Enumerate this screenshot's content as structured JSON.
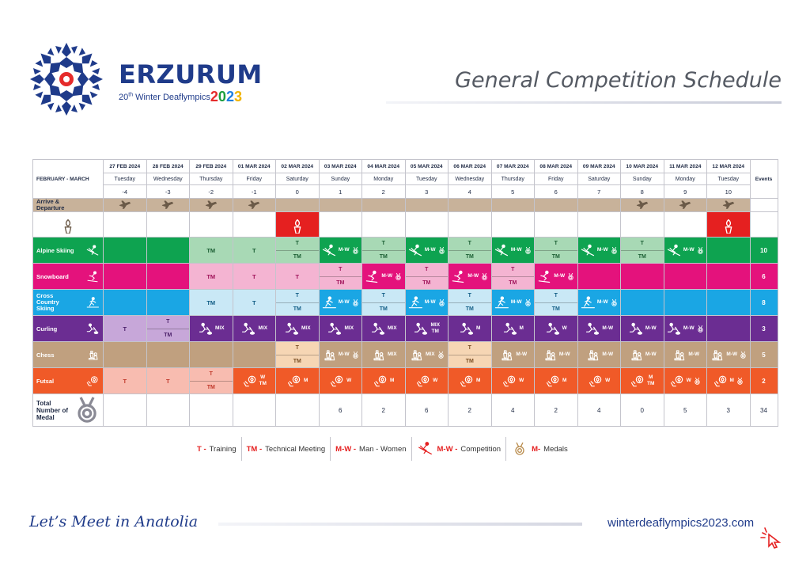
{
  "header": {
    "brand_name": "ERZURUM",
    "brand_sub_num": "20",
    "brand_sub_sup": "th",
    "brand_sub_text": "Winter Deaflympics",
    "brand_year": [
      "2",
      "0",
      "2",
      "3"
    ],
    "page_title": "General Competition Schedule"
  },
  "table": {
    "corner_label": "FEBRUARY - MARCH",
    "events_header": "Events",
    "days": [
      {
        "date": "27 FEB 2024",
        "weekday": "Tuesday",
        "rel": "-4"
      },
      {
        "date": "28 FEB 2024",
        "weekday": "Wednesday",
        "rel": "-3"
      },
      {
        "date": "29 FEB 2024",
        "weekday": "Thursday",
        "rel": "-2"
      },
      {
        "date": "01 MAR 2024",
        "weekday": "Friday",
        "rel": "-1"
      },
      {
        "date": "02 MAR 2024",
        "weekday": "Saturday",
        "rel": "0"
      },
      {
        "date": "03 MAR 2024",
        "weekday": "Sunday",
        "rel": "1"
      },
      {
        "date": "04 MAR 2024",
        "weekday": "Monday",
        "rel": "2"
      },
      {
        "date": "05 MAR 2024",
        "weekday": "Tuesday",
        "rel": "3"
      },
      {
        "date": "06 MAR 2024",
        "weekday": "Wednesday",
        "rel": "4"
      },
      {
        "date": "07 MAR 2024",
        "weekday": "Thursday",
        "rel": "5"
      },
      {
        "date": "08 MAR 2024",
        "weekday": "Friday",
        "rel": "6"
      },
      {
        "date": "09 MAR 2024",
        "weekday": "Saturday",
        "rel": "7"
      },
      {
        "date": "10 MAR 2024",
        "weekday": "Sunday",
        "rel": "8"
      },
      {
        "date": "11 MAR 2024",
        "weekday": "Monday",
        "rel": "9"
      },
      {
        "date": "12 MAR 2024",
        "weekday": "Tuesday",
        "rel": "10"
      }
    ],
    "travel_label": "Arrive & Departure",
    "travel_icon": "airplane-icon",
    "ceremony_icon": "torch-icon",
    "sports": [
      {
        "key": "alpine",
        "label": "Alpine Skiing",
        "icon": "alpine-skier-icon",
        "events": "10",
        "cells": [
          {
            "t": "empty"
          },
          {
            "t": "empty"
          },
          {
            "t": "code",
            "v": "TM"
          },
          {
            "t": "code",
            "v": "T"
          },
          {
            "t": "split",
            "a": "T",
            "b": "TM"
          },
          {
            "t": "comp",
            "mw": "M-W",
            "icon": "alpine-skier-icon",
            "medal": true
          },
          {
            "t": "split",
            "a": "T",
            "b": "TM"
          },
          {
            "t": "comp",
            "mw": "M-W",
            "icon": "alpine-skier-icon",
            "medal": true
          },
          {
            "t": "split",
            "a": "T",
            "b": "TM"
          },
          {
            "t": "comp",
            "mw": "M-W",
            "icon": "alpine-skier-icon",
            "medal": true
          },
          {
            "t": "split",
            "a": "T",
            "b": "TM"
          },
          {
            "t": "comp",
            "mw": "M-W",
            "icon": "alpine-skier-icon",
            "medal": true
          },
          {
            "t": "split",
            "a": "T",
            "b": "TM"
          },
          {
            "t": "comp",
            "mw": "M-W",
            "icon": "alpine-skier-icon",
            "medal": true
          },
          {
            "t": "empty"
          }
        ]
      },
      {
        "key": "snow",
        "label": "Snowboard",
        "icon": "snowboarder-icon",
        "events": "6",
        "cells": [
          {
            "t": "empty"
          },
          {
            "t": "empty"
          },
          {
            "t": "code",
            "v": "TM"
          },
          {
            "t": "code",
            "v": "T"
          },
          {
            "t": "code",
            "v": "T"
          },
          {
            "t": "split",
            "a": "T",
            "b": "TM"
          },
          {
            "t": "comp",
            "mw": "M-W",
            "icon": "snowboarder-icon",
            "medal": true
          },
          {
            "t": "split",
            "a": "T",
            "b": "TM"
          },
          {
            "t": "comp",
            "mw": "M-W",
            "icon": "snowboarder-icon",
            "medal": true
          },
          {
            "t": "split",
            "a": "T",
            "b": "TM"
          },
          {
            "t": "comp",
            "mw": "M-W",
            "icon": "snowboarder-icon",
            "medal": true
          },
          {
            "t": "empty"
          },
          {
            "t": "empty"
          },
          {
            "t": "empty"
          },
          {
            "t": "empty"
          }
        ]
      },
      {
        "key": "cross",
        "label": "Cross Country Skiing",
        "icon": "cross-country-skier-icon",
        "events": "8",
        "cells": [
          {
            "t": "empty"
          },
          {
            "t": "empty"
          },
          {
            "t": "code",
            "v": "TM"
          },
          {
            "t": "code",
            "v": "T"
          },
          {
            "t": "split",
            "a": "T",
            "b": "TM"
          },
          {
            "t": "comp",
            "mw": "M-W",
            "icon": "cross-country-skier-icon",
            "medal": true
          },
          {
            "t": "split",
            "a": "T",
            "b": "TM"
          },
          {
            "t": "comp",
            "mw": "M-W",
            "icon": "cross-country-skier-icon",
            "medal": true
          },
          {
            "t": "split",
            "a": "T",
            "b": "TM"
          },
          {
            "t": "comp",
            "mw": "M-W",
            "icon": "cross-country-skier-icon",
            "medal": true
          },
          {
            "t": "split",
            "a": "T",
            "b": "TM"
          },
          {
            "t": "comp",
            "mw": "M-W",
            "icon": "cross-country-skier-icon",
            "medal": true
          },
          {
            "t": "empty"
          },
          {
            "t": "empty"
          },
          {
            "t": "empty"
          }
        ]
      },
      {
        "key": "curl",
        "label": "Curling",
        "icon": "curling-icon",
        "events": "3",
        "cells": [
          {
            "t": "code",
            "v": "T"
          },
          {
            "t": "split",
            "a": "T",
            "b": "TM"
          },
          {
            "t": "comp",
            "mw": "MIX",
            "icon": "curling-icon"
          },
          {
            "t": "comp",
            "mw": "MIX",
            "icon": "curling-icon"
          },
          {
            "t": "comp",
            "mw": "MIX",
            "icon": "curling-icon"
          },
          {
            "t": "comp",
            "mw": "MIX",
            "icon": "curling-icon"
          },
          {
            "t": "comp",
            "mw": "MIX",
            "icon": "curling-icon"
          },
          {
            "t": "comp",
            "mw": "MIX",
            "icon": "curling-icon",
            "extra": "TM"
          },
          {
            "t": "comp",
            "mw": "M",
            "icon": "curling-icon"
          },
          {
            "t": "comp",
            "mw": "M",
            "icon": "curling-icon"
          },
          {
            "t": "comp",
            "mw": "W",
            "icon": "curling-icon"
          },
          {
            "t": "comp",
            "mw": "M-W",
            "icon": "curling-icon"
          },
          {
            "t": "comp",
            "mw": "M-W",
            "icon": "curling-icon"
          },
          {
            "t": "comp",
            "mw": "M-W",
            "icon": "curling-icon",
            "medal": true
          },
          {
            "t": "empty"
          }
        ]
      },
      {
        "key": "chess",
        "label": "Chess",
        "icon": "chess-icon",
        "events": "5",
        "cells": [
          {
            "t": "empty"
          },
          {
            "t": "empty"
          },
          {
            "t": "empty"
          },
          {
            "t": "empty"
          },
          {
            "t": "split",
            "a": "T",
            "b": "TM"
          },
          {
            "t": "comp",
            "mw": "M-W",
            "icon": "chess-icon",
            "medal": true
          },
          {
            "t": "comp",
            "mw": "MIX",
            "icon": "chess-icon"
          },
          {
            "t": "comp",
            "mw": "MIX",
            "icon": "chess-icon",
            "medal": true
          },
          {
            "t": "split",
            "a": "T",
            "b": "TM"
          },
          {
            "t": "comp",
            "mw": "M-W",
            "icon": "chess-icon"
          },
          {
            "t": "comp",
            "mw": "M-W",
            "icon": "chess-icon"
          },
          {
            "t": "comp",
            "mw": "M-W",
            "icon": "chess-icon"
          },
          {
            "t": "comp",
            "mw": "M-W",
            "icon": "chess-icon"
          },
          {
            "t": "comp",
            "mw": "M-W",
            "icon": "chess-icon"
          },
          {
            "t": "comp",
            "mw": "M-W",
            "icon": "chess-icon",
            "medal": true
          }
        ]
      },
      {
        "key": "futsal",
        "label": "Futsal",
        "icon": "futsal-icon",
        "events": "2",
        "cells": [
          {
            "t": "code",
            "v": "T"
          },
          {
            "t": "code",
            "v": "T"
          },
          {
            "t": "split",
            "a": "T",
            "b": "TM"
          },
          {
            "t": "comp",
            "mw": "W",
            "icon": "futsal-icon",
            "extra": "TM"
          },
          {
            "t": "comp",
            "mw": "M",
            "icon": "futsal-icon"
          },
          {
            "t": "comp",
            "mw": "W",
            "icon": "futsal-icon"
          },
          {
            "t": "comp",
            "mw": "M",
            "icon": "futsal-icon"
          },
          {
            "t": "comp",
            "mw": "W",
            "icon": "futsal-icon"
          },
          {
            "t": "comp",
            "mw": "M",
            "icon": "futsal-icon"
          },
          {
            "t": "comp",
            "mw": "W",
            "icon": "futsal-icon"
          },
          {
            "t": "comp",
            "mw": "M",
            "icon": "futsal-icon"
          },
          {
            "t": "comp",
            "mw": "W",
            "icon": "futsal-icon"
          },
          {
            "t": "comp",
            "mw": "M",
            "icon": "futsal-icon",
            "extra": "TM"
          },
          {
            "t": "comp",
            "mw": "W",
            "icon": "futsal-icon",
            "medal": true
          },
          {
            "t": "comp",
            "mw": "M",
            "icon": "futsal-icon",
            "medal": true
          }
        ]
      }
    ],
    "medals_label": "Total Number of Medal",
    "medals": [
      "",
      "",
      "",
      "",
      "",
      "6",
      "2",
      "6",
      "2",
      "4",
      "2",
      "4",
      "0",
      "5",
      "3"
    ],
    "medals_total": "34"
  },
  "legend": {
    "t_key": "T -",
    "t_text": "Training",
    "tm_key": "TM -",
    "tm_text": "Technical Meeting",
    "mw_key": "M-W -",
    "mw_text": "Man - Women",
    "comp_key": "M-W -",
    "comp_text": "Competition",
    "medal_key": "M-",
    "medal_text": "Medals"
  },
  "footer": {
    "slogan": "Let’s Meet in Anatolia",
    "site": "winterdeaflympics2023.com"
  },
  "colors": {
    "brand_blue": "#1f3b8a",
    "alpine": "#0ea350",
    "snowboard": "#e4127c",
    "cross_country": "#1aa6e4",
    "curling": "#6b2d92",
    "chess": "#c0a07f",
    "futsal": "#f05a28",
    "travel": "#c8b29a",
    "ceremony": "#e52020"
  }
}
